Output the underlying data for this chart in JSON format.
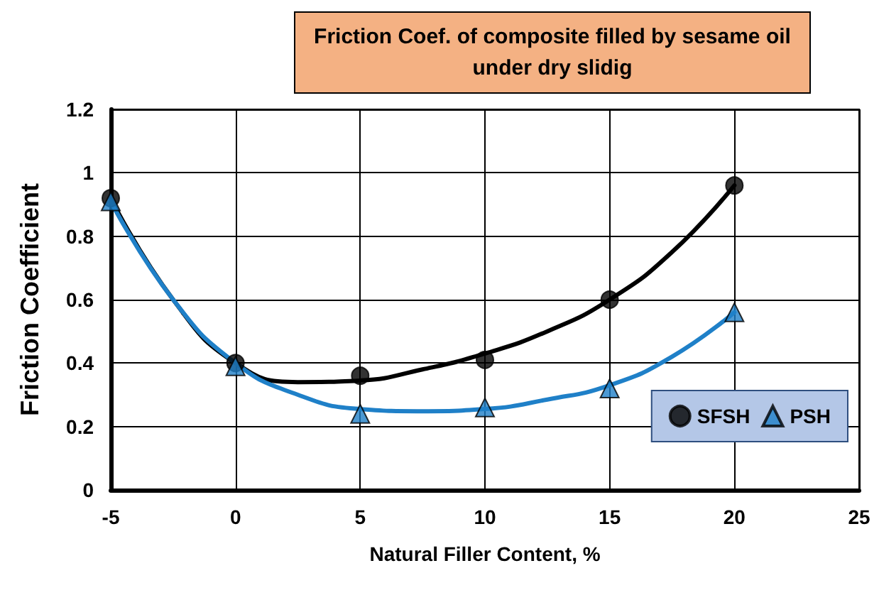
{
  "chart_data": {
    "type": "scatter",
    "title": "Friction Coef. of composite filled by sesame oil\nunder dry slidig",
    "xlabel": "Natural Filler Content, %",
    "ylabel": "Friction Coefficient",
    "x": [
      -5,
      0,
      5,
      10,
      15,
      20
    ],
    "series": [
      {
        "name": "SFSH",
        "color": "#000000",
        "marker": "circle",
        "values": [
          0.92,
          0.4,
          0.36,
          0.41,
          0.6,
          0.96
        ]
      },
      {
        "name": "PSH",
        "color": "#1f80c8",
        "marker": "triangle",
        "values": [
          0.91,
          0.39,
          0.24,
          0.26,
          0.32,
          0.56
        ]
      },
      {
        "type": "line",
        "color": "#000000",
        "marker": "none",
        "x": [
          -5,
          -2.5,
          0,
          2.5,
          5,
          7.5,
          10,
          12.5,
          15,
          17.5,
          20
        ],
        "values": [
          0.92,
          0.6,
          0.4,
          0.34,
          0.345,
          0.38,
          0.43,
          0.5,
          0.6,
          0.75,
          0.96
        ]
      },
      {
        "type": "line",
        "color": "#1f80c8",
        "marker": "none",
        "x": [
          -5,
          -2.5,
          0,
          2.5,
          5,
          7.5,
          10,
          12.5,
          15,
          17.5,
          20
        ],
        "values": [
          0.91,
          0.6,
          0.4,
          0.3,
          0.255,
          0.248,
          0.255,
          0.285,
          0.33,
          0.42,
          0.56
        ]
      }
    ],
    "xlim": [
      -5,
      25
    ],
    "xticks": [
      -5,
      0,
      5,
      10,
      15,
      20,
      25
    ],
    "ylim": [
      0,
      1.2
    ],
    "yticks": [
      0,
      0.2,
      0.4,
      0.6,
      0.8,
      1,
      1.2
    ],
    "grid": true,
    "legend": "bottom right"
  }
}
